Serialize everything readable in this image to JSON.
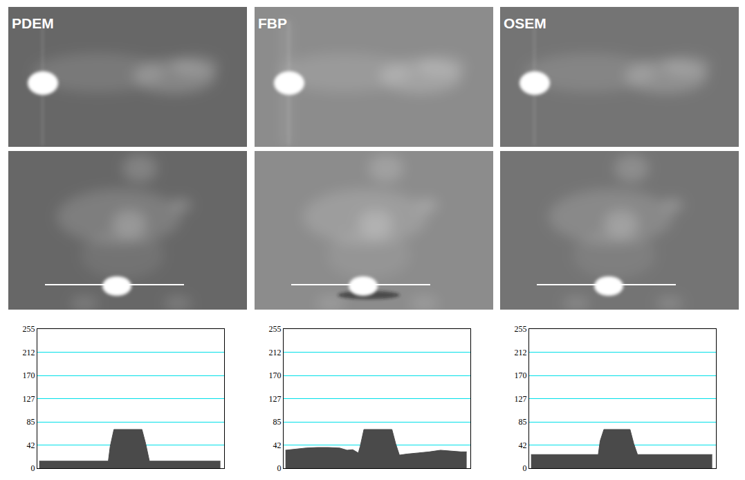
{
  "panels": [
    {
      "label": "PDEM"
    },
    {
      "label": "FBP"
    },
    {
      "label": "OSEM"
    }
  ],
  "chart_data": [
    {
      "type": "area",
      "x": [
        1,
        38,
        39,
        41,
        56,
        58,
        60,
        98
      ],
      "values": [
        13,
        13,
        40,
        71,
        71,
        45,
        13,
        13
      ],
      "color": "#4a4a4a",
      "xlim": [
        0,
        100
      ],
      "ylim": [
        0,
        255
      ],
      "yticks": [
        0,
        42,
        85,
        127,
        170,
        212,
        255
      ],
      "grid": true,
      "tick_labels": "y"
    },
    {
      "type": "area",
      "x": [
        1,
        6,
        12,
        18,
        24,
        30,
        34,
        37,
        40,
        41,
        43,
        58,
        60,
        62,
        66,
        72,
        78,
        84,
        90,
        95,
        98
      ],
      "values": [
        33,
        35,
        37,
        38,
        38,
        37,
        33,
        34,
        28,
        40,
        71,
        71,
        45,
        24,
        26,
        28,
        30,
        33,
        31,
        30,
        30
      ],
      "color": "#4a4a4a",
      "xlim": [
        0,
        100
      ],
      "ylim": [
        0,
        255
      ],
      "yticks": [
        0,
        42,
        85,
        127,
        170,
        212,
        255
      ],
      "grid": true,
      "tick_labels": "y"
    },
    {
      "type": "area",
      "x": [
        1,
        37,
        38,
        40,
        54,
        56,
        58,
        98
      ],
      "values": [
        25,
        25,
        50,
        71,
        71,
        45,
        25,
        25
      ],
      "color": "#4a4a4a",
      "xlim": [
        0,
        100
      ],
      "ylim": [
        0,
        255
      ],
      "yticks": [
        0,
        42,
        85,
        127,
        170,
        212,
        255
      ],
      "grid": true,
      "tick_labels": "y"
    }
  ]
}
